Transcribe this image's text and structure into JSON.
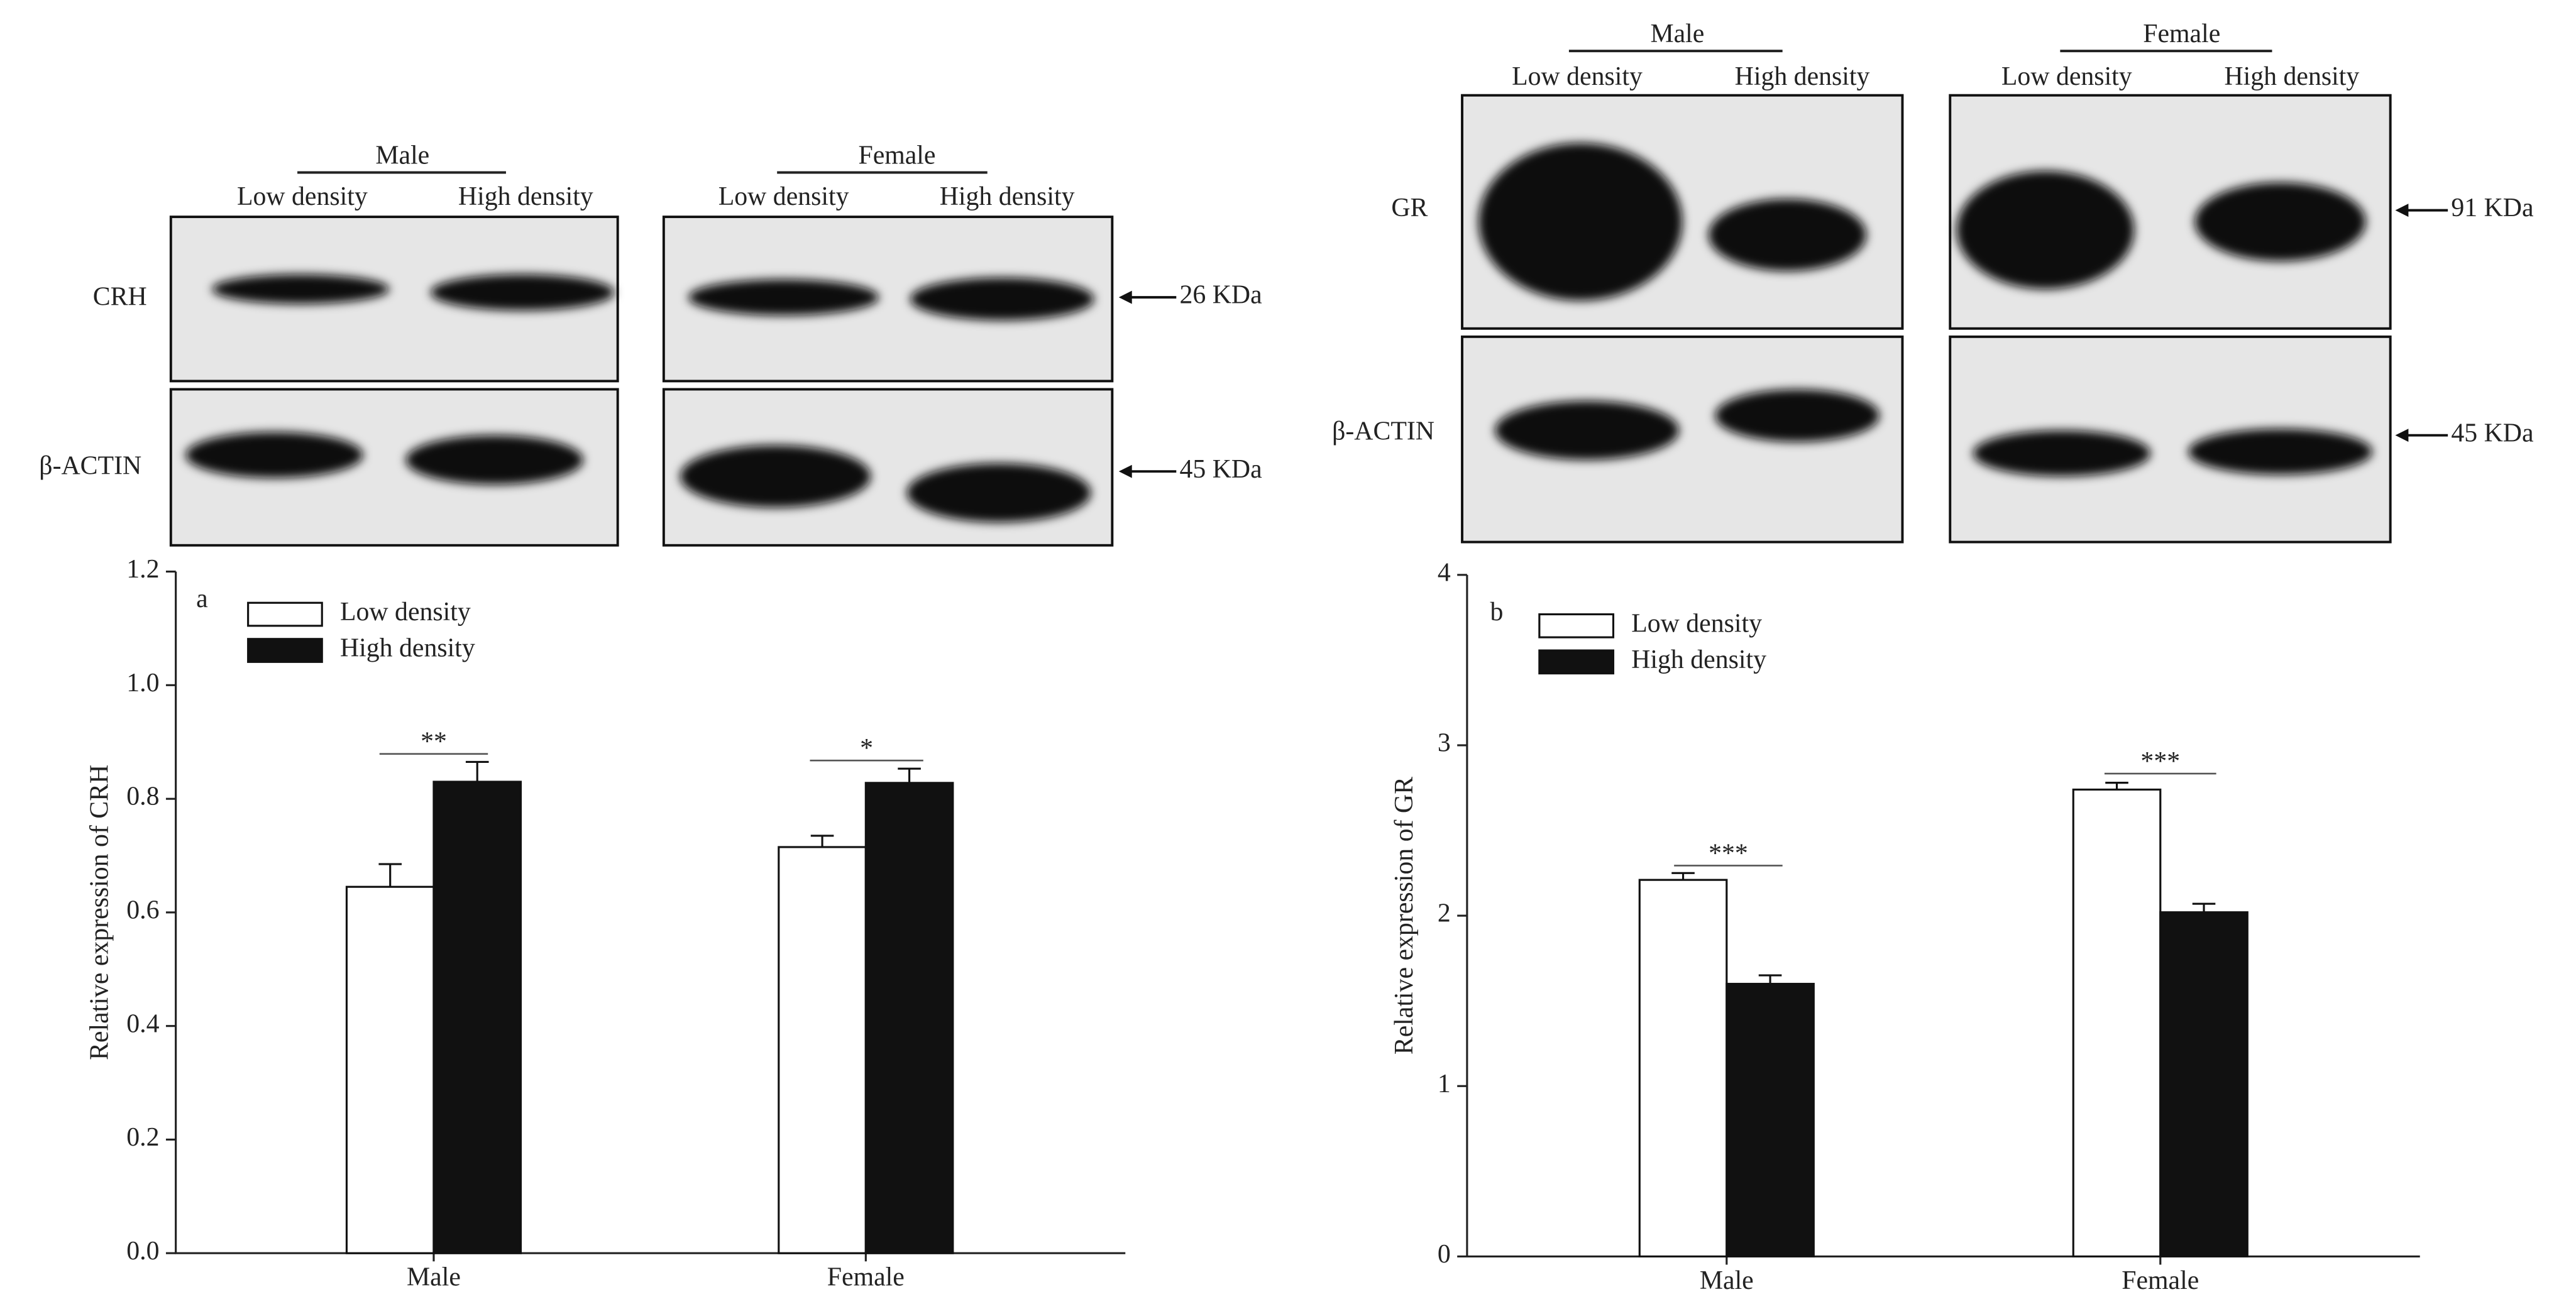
{
  "chart_data": [
    {
      "type": "bar",
      "panel": "a",
      "ylabel": "Relative expression of CRH",
      "categories": [
        "Male",
        "Female"
      ],
      "series": [
        {
          "name": "Low density",
          "color": "#ffffff",
          "values": [
            0.645,
            0.715
          ],
          "errors": [
            0.04,
            0.02
          ]
        },
        {
          "name": "High density",
          "color": "#111111",
          "values": [
            0.83,
            0.828
          ],
          "errors": [
            0.035,
            0.025
          ]
        }
      ],
      "annotations": [
        "**",
        "*"
      ],
      "ylim": [
        0,
        1.2
      ],
      "yticks": [
        {
          "value": 0,
          "label": "0.0"
        },
        0.2,
        0.4,
        0.6,
        0.8,
        {
          "value": 1,
          "label": "1.0"
        },
        1.2
      ],
      "blot": {
        "groups": [
          {
            "name": "Male",
            "lanes": [
              "Low density",
              "High density"
            ]
          },
          {
            "name": "Female",
            "lanes": [
              "Low density",
              "High density"
            ]
          }
        ],
        "bands": [
          "CRH",
          "β-ACTIN"
        ],
        "markers": [
          "26 KDa",
          "45 KDa"
        ]
      }
    },
    {
      "type": "bar",
      "panel": "b",
      "ylabel": "Relative expression of GR",
      "categories": [
        "Male",
        "Female"
      ],
      "series": [
        {
          "name": "Low density",
          "color": "#ffffff",
          "values": [
            2.21,
            2.74
          ],
          "errors": [
            0.04,
            0.04
          ]
        },
        {
          "name": "High density",
          "color": "#111111",
          "values": [
            1.6,
            2.02
          ],
          "errors": [
            0.05,
            0.05
          ]
        }
      ],
      "annotations": [
        "***",
        "***"
      ],
      "ylim": [
        0,
        4
      ],
      "yticks": [
        0,
        1,
        2,
        3,
        4
      ],
      "blot": {
        "groups": [
          {
            "name": "Male",
            "lanes": [
              "Low density",
              "High density"
            ]
          },
          {
            "name": "Female",
            "lanes": [
              "Low density",
              "High density"
            ]
          }
        ],
        "bands": [
          "GR",
          "β-ACTIN"
        ],
        "markers": [
          "91 KDa",
          "45 KDa"
        ]
      }
    }
  ]
}
